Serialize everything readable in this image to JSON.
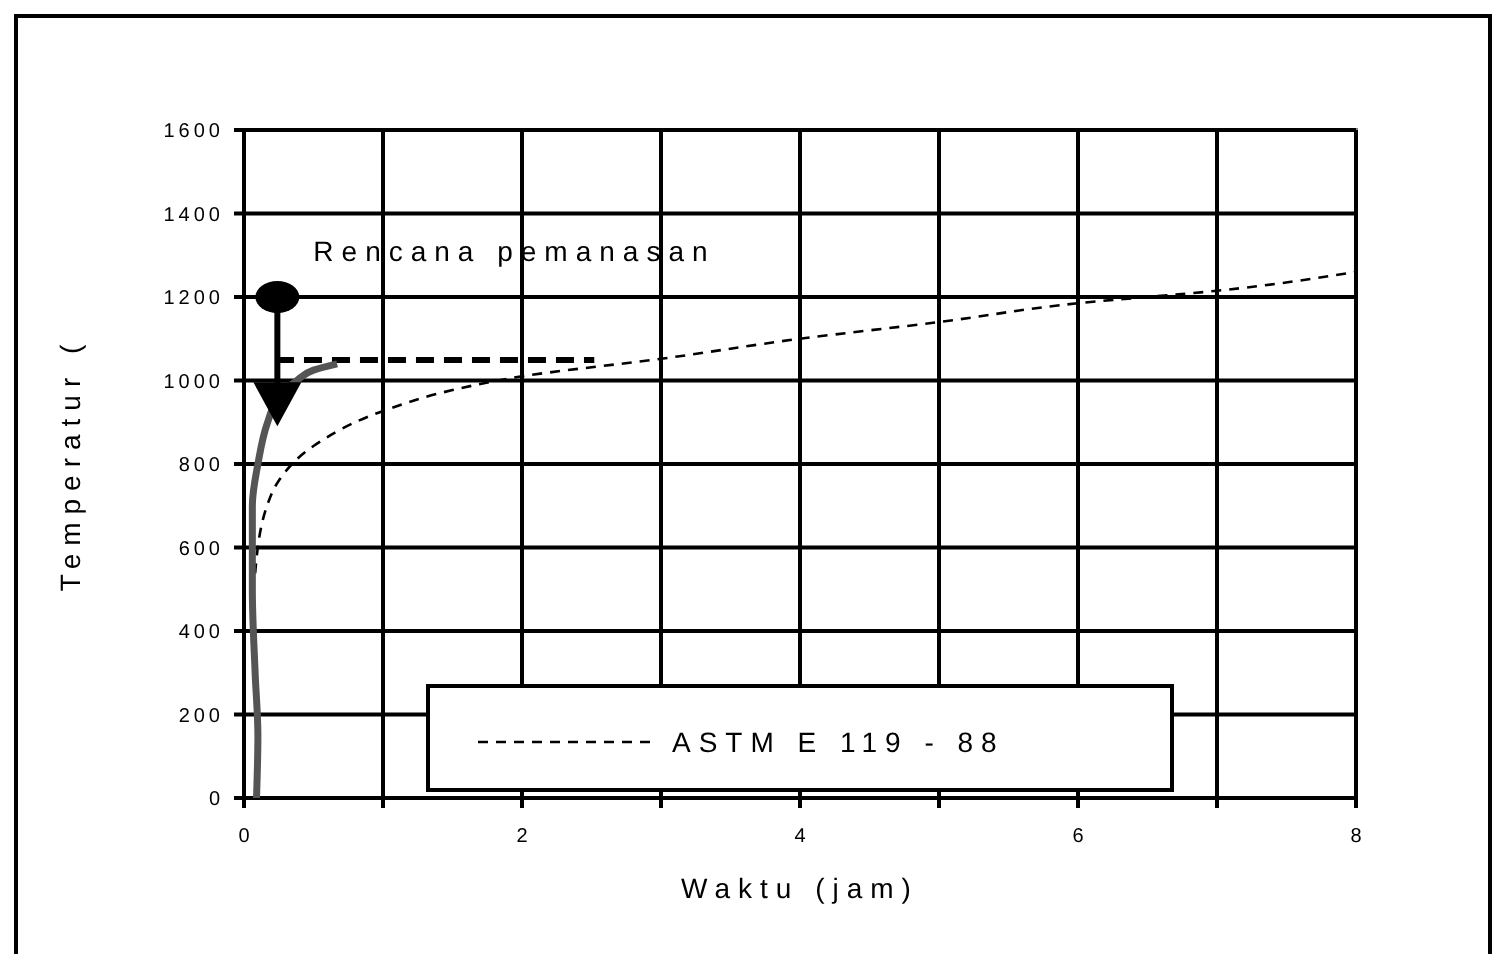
{
  "chart_data": {
    "type": "line",
    "xlabel": "Waktu (jam)",
    "ylabel": "Temperatur (",
    "xlim": [
      0,
      8
    ],
    "ylim": [
      0,
      1600
    ],
    "xticks": [
      0,
      {
        "value": 1,
        "label": null
      },
      2,
      {
        "value": 3,
        "label": null
      },
      4,
      {
        "value": 5,
        "label": null
      },
      6,
      {
        "value": 7,
        "label": null
      },
      8
    ],
    "yticks": [
      0,
      200,
      400,
      600,
      800,
      1000,
      1200,
      1400,
      1600
    ],
    "grid": true,
    "legend": "bottom",
    "annotations": [
      {
        "text": "Rencana pemanasan",
        "x": 0.24,
        "y": 1200
      }
    ],
    "marker": "none",
    "series": [
      {
        "name": "ASTM E 119 - 88",
        "color": "#000000",
        "line_style": "dashed",
        "x": [
          0.08,
          0.17,
          0.25,
          0.5,
          1,
          1.5,
          2,
          3,
          4,
          5,
          6,
          7,
          8
        ],
        "values": [
          538,
          704,
          760,
          843,
          927,
          977,
          1010,
          1052,
          1100,
          1140,
          1185,
          1215,
          1260
        ]
      },
      {
        "color": "#000000",
        "line_style": "dashed",
        "x": [
          0.23,
          2.52
        ],
        "values": [
          1049,
          1049
        ]
      },
      {
        "color": "#555555",
        "line_style": "solid",
        "x": [
          0.09,
          0.1,
          0.08,
          0.06,
          0.06,
          0.1,
          0.17,
          0.25,
          0.38,
          0.5,
          0.67
        ],
        "values": [
          0,
          150,
          300,
          500,
          700,
          800,
          900,
          960,
          1000,
          1025,
          1040
        ]
      }
    ]
  }
}
